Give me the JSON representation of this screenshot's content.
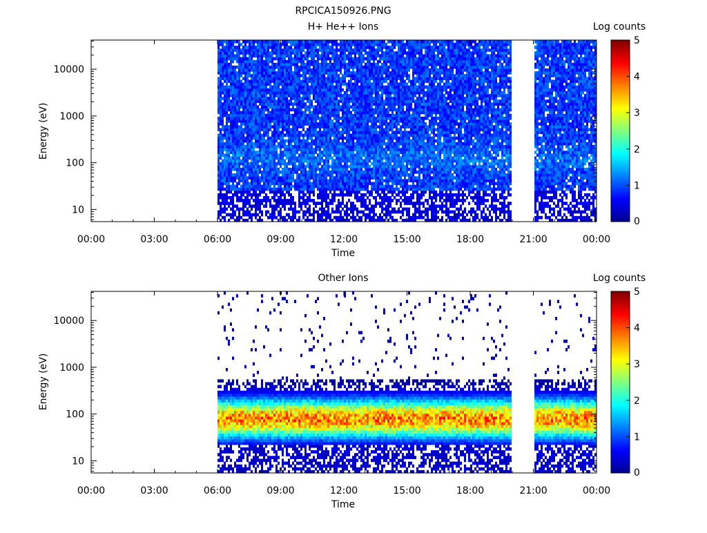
{
  "page_title": "RPCICA150926.PNG",
  "colorbar_label": "Log counts",
  "colorbar_ticks": [
    "0",
    "1",
    "2",
    "3",
    "4",
    "5"
  ],
  "colormap": [
    "#00008f",
    "#0000ff",
    "#0080ff",
    "#00ffff",
    "#80ff80",
    "#ffff00",
    "#ff8000",
    "#ff0000",
    "#800000"
  ],
  "chart_data": [
    {
      "type": "heatmap",
      "title": "H+ He++ Ions",
      "xlabel": "Time",
      "ylabel": "Energy (eV)",
      "y_scale": "log",
      "x_ticks": [
        "00:00",
        "03:00",
        "06:00",
        "09:00",
        "12:00",
        "15:00",
        "18:00",
        "21:00",
        "00:00"
      ],
      "y_ticks": [
        "10",
        "100",
        "1000",
        "10000"
      ],
      "xlim_hours": [
        0,
        24
      ],
      "ylim_eV": [
        5.5,
        42000
      ],
      "zlim_log_counts": [
        0,
        5
      ],
      "data_intervals_hours": [
        [
          6.0,
          19.9
        ],
        [
          21.05,
          23.95
        ]
      ],
      "typical_log_counts": {
        "low_energy": 0.5,
        "mid_energy": 0.9,
        "high_energy": 0.6
      }
    },
    {
      "type": "heatmap",
      "title": "Other Ions",
      "xlabel": "Time",
      "ylabel": "Energy (eV)",
      "y_scale": "log",
      "x_ticks": [
        "00:00",
        "03:00",
        "06:00",
        "09:00",
        "12:00",
        "15:00",
        "18:00",
        "21:00",
        "00:00"
      ],
      "y_ticks": [
        "10",
        "100",
        "1000",
        "10000"
      ],
      "xlim_hours": [
        0,
        24
      ],
      "ylim_eV": [
        5.5,
        42000
      ],
      "zlim_log_counts": [
        0,
        5
      ],
      "data_intervals_hours": [
        [
          6.0,
          19.9
        ],
        [
          21.05,
          23.95
        ]
      ],
      "peak_energy_eV": 80,
      "peak_log_counts": 4.0
    }
  ]
}
